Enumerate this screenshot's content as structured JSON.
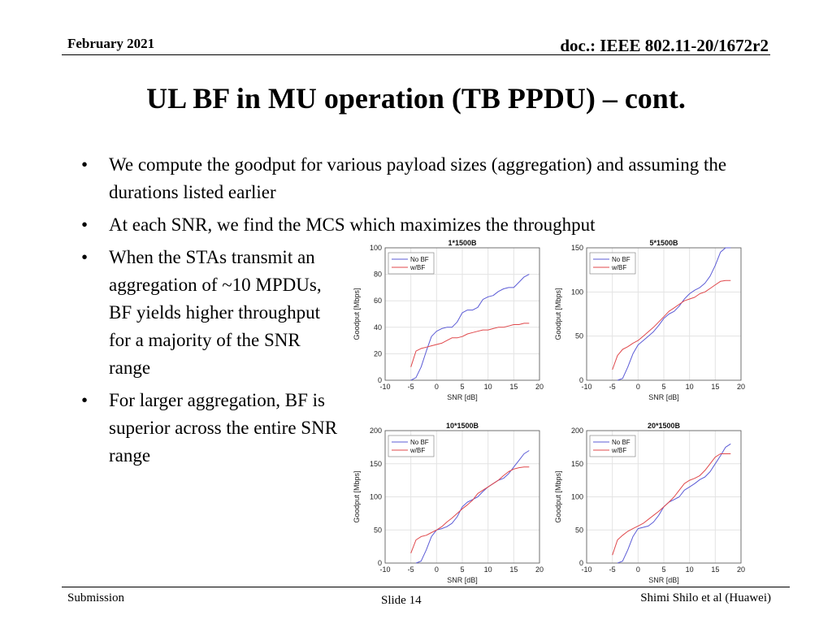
{
  "header": {
    "date": "February 2021",
    "doc": "doc.: IEEE 802.11-20/1672r2"
  },
  "title": "UL BF in MU operation (TB PPDU) – cont.",
  "bullets": [
    "We compute the goodput for various payload sizes (aggregation) and assuming the durations listed earlier",
    "At each SNR, we find the MCS which maximizes the throughput",
    "When the STAs transmit an aggregation of ~10 MPDUs, BF yields higher throughput for a majority of the SNR range",
    "For larger aggregation, BF is superior across the entire SNR range"
  ],
  "footer": {
    "left": "Submission",
    "center": "Slide 14",
    "right": "Shimi Shilo et al (Huawei)"
  },
  "colors": {
    "no_bf": "#5b5bd6",
    "w_bf": "#e0484b"
  },
  "chart_data": [
    {
      "type": "line",
      "title": "1*1500B",
      "xlabel": "SNR [dB]",
      "ylabel": "Goodput [Mbps]",
      "xlim": [
        -10,
        20
      ],
      "ylim": [
        0,
        100
      ],
      "xticks": [
        "-10",
        "-5",
        "0",
        "5",
        "10",
        "15",
        "20"
      ],
      "yticks": [
        "0",
        "20",
        "40",
        "60",
        "80",
        "100"
      ],
      "grid": true,
      "legend_position": "top-left",
      "series": [
        {
          "name": "No BF",
          "x": [
            -5,
            -4,
            -3,
            -2,
            -1,
            0,
            1,
            2,
            3,
            4,
            5,
            6,
            7,
            8,
            9,
            10,
            11,
            12,
            13,
            14,
            15,
            16,
            17,
            18
          ],
          "y": [
            0,
            2,
            10,
            22,
            33,
            37,
            39,
            40,
            40,
            44,
            51,
            53,
            53,
            55,
            61,
            63,
            64,
            67,
            69,
            70,
            70,
            74,
            78,
            80
          ]
        },
        {
          "name": "w/BF",
          "x": [
            -5,
            -4,
            -3,
            -2,
            -1,
            0,
            1,
            2,
            3,
            4,
            5,
            6,
            7,
            8,
            9,
            10,
            11,
            12,
            13,
            14,
            15,
            16,
            17,
            18
          ],
          "y": [
            10,
            22,
            24,
            25,
            26,
            27,
            28,
            30,
            32,
            32,
            33,
            35,
            36,
            37,
            38,
            38,
            39,
            40,
            40,
            41,
            42,
            42,
            43,
            43
          ]
        }
      ]
    },
    {
      "type": "line",
      "title": "5*1500B",
      "xlabel": "SNR [dB]",
      "ylabel": "Goodput [Mbps]",
      "xlim": [
        -10,
        20
      ],
      "ylim": [
        0,
        150
      ],
      "xticks": [
        "-10",
        "-5",
        "0",
        "5",
        "10",
        "15",
        "20"
      ],
      "yticks": [
        "0",
        "50",
        "100",
        "150"
      ],
      "grid": true,
      "legend_position": "top-left",
      "series": [
        {
          "name": "No BF",
          "x": [
            -4,
            -3,
            -2,
            -1,
            0,
            1,
            2,
            3,
            4,
            5,
            6,
            7,
            8,
            9,
            10,
            11,
            12,
            13,
            14,
            15,
            16,
            17,
            18
          ],
          "y": [
            0,
            2,
            15,
            30,
            40,
            45,
            50,
            55,
            62,
            70,
            75,
            78,
            84,
            92,
            98,
            102,
            105,
            110,
            118,
            130,
            145,
            150,
            150
          ]
        },
        {
          "name": "w/BF",
          "x": [
            -5,
            -4,
            -3,
            -2,
            -1,
            0,
            1,
            2,
            3,
            4,
            5,
            6,
            7,
            8,
            9,
            10,
            11,
            12,
            13,
            14,
            15,
            16,
            17,
            18
          ],
          "y": [
            12,
            28,
            35,
            38,
            42,
            45,
            50,
            55,
            60,
            66,
            72,
            78,
            82,
            86,
            90,
            92,
            94,
            98,
            100,
            104,
            108,
            112,
            113,
            113
          ]
        }
      ]
    },
    {
      "type": "line",
      "title": "10*1500B",
      "xlabel": "SNR [dB]",
      "ylabel": "Goodput [Mbps]",
      "xlim": [
        -10,
        20
      ],
      "ylim": [
        0,
        200
      ],
      "xticks": [
        "-10",
        "-5",
        "0",
        "5",
        "10",
        "15",
        "20"
      ],
      "yticks": [
        "0",
        "50",
        "100",
        "150",
        "200"
      ],
      "grid": true,
      "legend_position": "top-left",
      "series": [
        {
          "name": "No BF",
          "x": [
            -4,
            -3,
            -2,
            -1,
            0,
            1,
            2,
            3,
            4,
            5,
            6,
            7,
            8,
            9,
            10,
            11,
            12,
            13,
            14,
            15,
            16,
            17,
            18
          ],
          "y": [
            0,
            3,
            20,
            40,
            50,
            52,
            55,
            60,
            70,
            85,
            92,
            96,
            100,
            108,
            115,
            120,
            125,
            128,
            135,
            145,
            155,
            165,
            170
          ]
        },
        {
          "name": "w/BF",
          "x": [
            -5,
            -4,
            -3,
            -2,
            -1,
            0,
            1,
            2,
            3,
            4,
            5,
            6,
            7,
            8,
            9,
            10,
            11,
            12,
            13,
            14,
            15,
            16,
            17,
            18
          ],
          "y": [
            15,
            35,
            40,
            42,
            46,
            50,
            55,
            62,
            68,
            75,
            82,
            88,
            95,
            105,
            110,
            115,
            120,
            125,
            132,
            138,
            142,
            144,
            145,
            145
          ]
        }
      ]
    },
    {
      "type": "line",
      "title": "20*1500B",
      "xlabel": "SNR [dB]",
      "ylabel": "Goodput [Mbps]",
      "xlim": [
        -10,
        20
      ],
      "ylim": [
        0,
        200
      ],
      "xticks": [
        "-10",
        "-5",
        "0",
        "5",
        "10",
        "15",
        "20"
      ],
      "yticks": [
        "0",
        "50",
        "100",
        "150",
        "200"
      ],
      "grid": true,
      "legend_position": "top-left",
      "series": [
        {
          "name": "No BF",
          "x": [
            -4,
            -3,
            -2,
            -1,
            0,
            1,
            2,
            3,
            4,
            5,
            6,
            7,
            8,
            9,
            10,
            11,
            12,
            13,
            14,
            15,
            16,
            17,
            18
          ],
          "y": [
            0,
            3,
            20,
            40,
            52,
            54,
            56,
            62,
            72,
            85,
            92,
            96,
            100,
            110,
            115,
            120,
            126,
            130,
            138,
            150,
            162,
            175,
            180
          ]
        },
        {
          "name": "w/BF",
          "x": [
            -5,
            -4,
            -3,
            -2,
            -1,
            0,
            1,
            2,
            3,
            4,
            5,
            6,
            7,
            8,
            9,
            10,
            11,
            12,
            13,
            14,
            15,
            16,
            17,
            18
          ],
          "y": [
            12,
            35,
            42,
            48,
            52,
            56,
            60,
            66,
            72,
            78,
            85,
            92,
            100,
            110,
            120,
            125,
            128,
            132,
            140,
            150,
            160,
            165,
            165,
            165
          ]
        }
      ]
    }
  ]
}
